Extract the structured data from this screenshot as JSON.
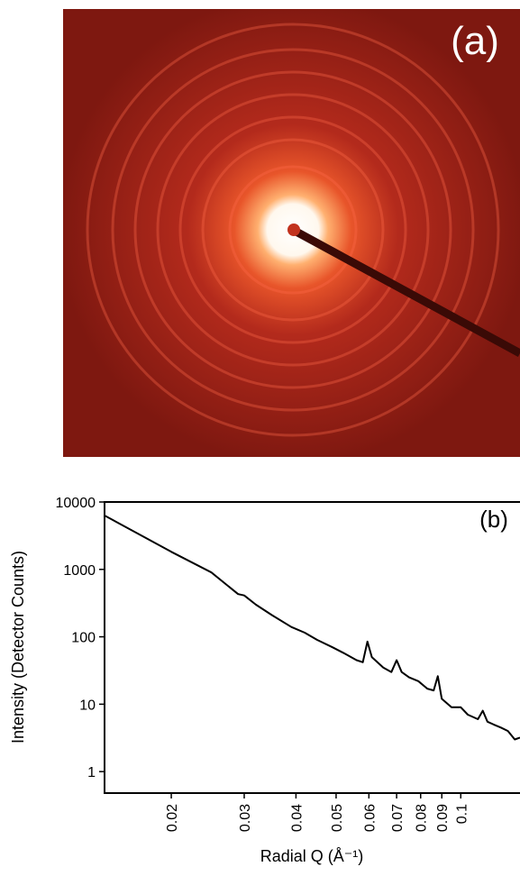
{
  "image": {
    "label": "(a)"
  },
  "chart_data": {
    "type": "line",
    "panel_label": "(b)",
    "xlabel": "Radial Q (Å⁻¹)",
    "ylabel": "Intensity (Detector Counts)",
    "xscale": "log",
    "yscale": "log",
    "color": "#000000",
    "xlim": [
      0.0138,
      0.139
    ],
    "ylim": [
      0.48,
      10000
    ],
    "xticks": [
      0.02,
      0.03,
      0.04,
      0.05,
      0.06,
      0.07,
      0.08,
      0.09,
      0.1
    ],
    "yticks": [
      1,
      10,
      100,
      1000,
      10000
    ],
    "x": [
      0.0138,
      0.02,
      0.025,
      0.029,
      0.03,
      0.032,
      0.035,
      0.039,
      0.042,
      0.045,
      0.049,
      0.052,
      0.056,
      0.058,
      0.0595,
      0.061,
      0.065,
      0.068,
      0.07,
      0.072,
      0.075,
      0.079,
      0.083,
      0.086,
      0.088,
      0.09,
      0.095,
      0.1,
      0.104,
      0.11,
      0.113,
      0.116,
      0.12,
      0.125,
      0.13,
      0.135,
      0.139
    ],
    "values": [
      6300,
      1820,
      900,
      430,
      410,
      300,
      210,
      140,
      115,
      90,
      70,
      58,
      45,
      42,
      85,
      50,
      35,
      30,
      45,
      30,
      25,
      22,
      17,
      16,
      26,
      12,
      9,
      9,
      7,
      6,
      8,
      5.5,
      5,
      4.5,
      4,
      3,
      3.2
    ]
  }
}
